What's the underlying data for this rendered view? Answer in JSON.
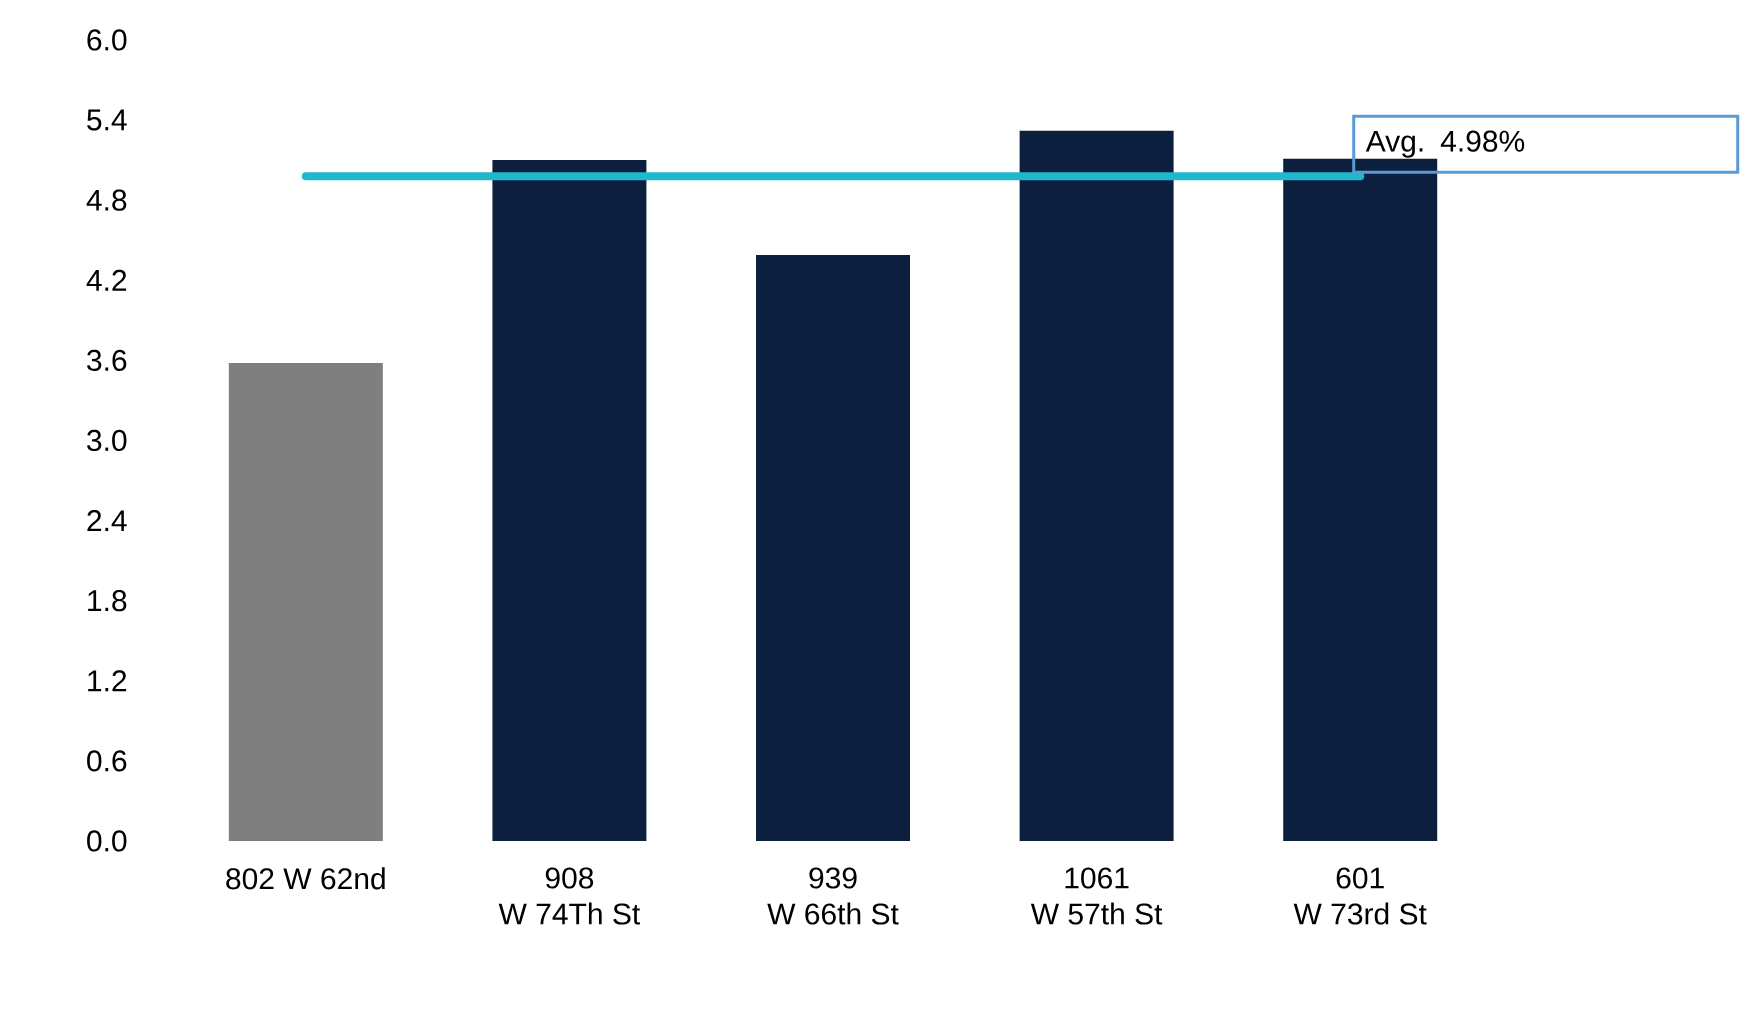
{
  "chart_data": {
    "type": "bar",
    "categories": [
      "802 W 62nd",
      "908\nW 74Th St",
      "939\nW 66th St",
      "1061\nW 57th St",
      "601\nW 73rd St"
    ],
    "values": [
      3.58,
      5.1,
      4.39,
      5.32,
      5.11
    ],
    "colors": [
      "#7f7f7f",
      "#0c1f3f",
      "#0c1f3f",
      "#0c1f3f",
      "#0c1f3f"
    ],
    "ylim": [
      0,
      6
    ],
    "yticks": [
      {
        "value": 0,
        "label": "0.0"
      },
      {
        "value": 0.6,
        "label": "0.6"
      },
      {
        "value": 1.2,
        "label": "1.2"
      },
      {
        "value": 1.8,
        "label": "1.8"
      },
      {
        "value": 2.4,
        "label": "2.4"
      },
      {
        "value": 3.0,
        "label": "3.0"
      },
      {
        "value": 3.6,
        "label": "3.6"
      },
      {
        "value": 4.2,
        "label": "4.2"
      },
      {
        "value": 4.8,
        "label": "4.8"
      },
      {
        "value": 5.4,
        "label": "5.4"
      },
      {
        "value": 6,
        "label": "6.0"
      }
    ],
    "ref_lines": [
      {
        "axis": "y",
        "value": 4.98,
        "label": "Avg. 4.98%",
        "color": "#1fb8cd"
      }
    ],
    "grid": false
  }
}
